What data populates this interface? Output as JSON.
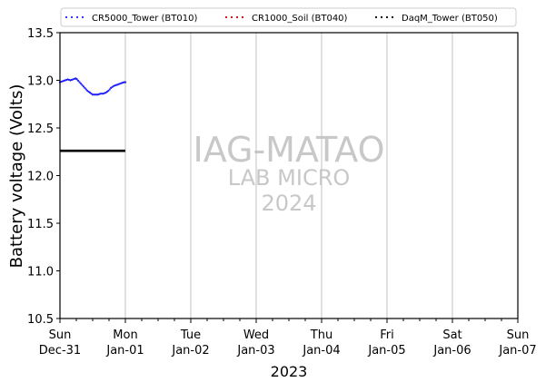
{
  "chart_data": {
    "type": "line",
    "xlabel": "2023",
    "ylabel": "Battery voltage (Volts)",
    "ylim": [
      10.5,
      13.5
    ],
    "yticks": [
      "10.5",
      "11.0",
      "11.5",
      "12.0",
      "12.5",
      "13.0",
      "13.5"
    ],
    "xlim_days": [
      0,
      7
    ],
    "xticks": [
      {
        "day": "Sun",
        "date": "Dec-31"
      },
      {
        "day": "Mon",
        "date": "Jan-01"
      },
      {
        "day": "Tue",
        "date": "Jan-02"
      },
      {
        "day": "Wed",
        "date": "Jan-03"
      },
      {
        "day": "Thu",
        "date": "Jan-04"
      },
      {
        "day": "Fri",
        "date": "Jan-05"
      },
      {
        "day": "Sat",
        "date": "Jan-06"
      },
      {
        "day": "Sun",
        "date": "Jan-07"
      }
    ],
    "grid": "vertical",
    "legend_position": "top",
    "series": [
      {
        "name": "CR5000_Tower (BT010)",
        "color": "#1f1fff",
        "style": "dotted",
        "x": [
          0.0,
          0.04,
          0.08,
          0.12,
          0.16,
          0.2,
          0.24,
          0.26,
          0.3,
          0.34,
          0.38,
          0.42,
          0.46,
          0.5,
          0.54,
          0.58,
          0.62,
          0.66,
          0.7,
          0.74,
          0.78,
          0.82,
          0.86,
          0.9,
          0.94,
          0.98,
          1.0
        ],
        "y": [
          12.98,
          12.99,
          13.0,
          13.01,
          13.0,
          13.01,
          13.02,
          13.01,
          12.98,
          12.95,
          12.92,
          12.89,
          12.87,
          12.85,
          12.85,
          12.85,
          12.86,
          12.86,
          12.87,
          12.89,
          12.92,
          12.94,
          12.95,
          12.96,
          12.97,
          12.98,
          12.98
        ]
      },
      {
        "name": "CR1000_Soil (BT040)",
        "color": "#cc0000",
        "style": "dotted",
        "x": [],
        "y": []
      },
      {
        "name": "DaqM_Tower (BT050)",
        "color": "#000000",
        "style": "dotted",
        "x": [
          0.0,
          0.1,
          0.2,
          0.3,
          0.4,
          0.5,
          0.6,
          0.7,
          0.8,
          0.9,
          1.0
        ],
        "y": [
          12.26,
          12.26,
          12.26,
          12.26,
          12.26,
          12.26,
          12.26,
          12.26,
          12.26,
          12.26,
          12.26
        ]
      }
    ],
    "watermark": [
      "IAG-MATAO",
      "LAB MICRO",
      "2024"
    ]
  }
}
